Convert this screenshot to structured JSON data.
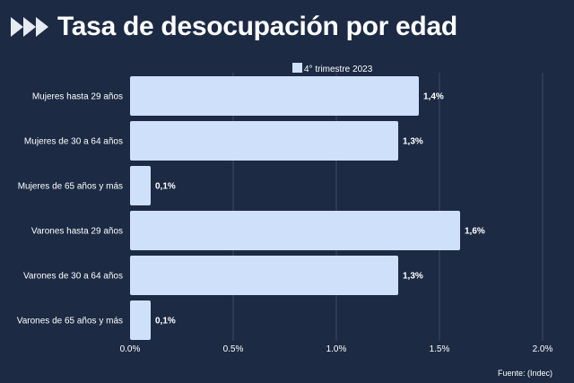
{
  "header": {
    "title": "Tasa de desocupación por edad",
    "logo_icon": "fast-forward-icon"
  },
  "chart_data": {
    "type": "bar",
    "orientation": "horizontal",
    "title": "Tasa de desocupación por edad",
    "categories": [
      "Mujeres hasta 29 años",
      "Mujeres de 30 a 64 años",
      "Mujeres de 65 años y más",
      "Varones hasta 29 años",
      "Varones de 30 a 64 años",
      "Varones de 65 años y más"
    ],
    "series": [
      {
        "name": "4° trimestre 2023",
        "values": [
          1.4,
          1.3,
          0.1,
          1.6,
          1.3,
          0.1
        ],
        "value_labels": [
          "1,4%",
          "1,3%",
          "0,1%",
          "1,6%",
          "1,3%",
          "0,1%"
        ]
      }
    ],
    "xlim": [
      0,
      2.0
    ],
    "xticks": [
      0,
      0.5,
      1.0,
      1.5,
      2.0
    ],
    "xtick_labels": [
      "0.0%",
      "0.5%",
      "1.0%",
      "1.5%",
      "2.0%"
    ],
    "grid": true,
    "legend_position": "top-center"
  },
  "source": "Fuente: (Indec)",
  "colors": {
    "background": "#1c2a44",
    "bar": "#cfe0fb",
    "text": "#ffffff",
    "grid": "#3a4a66",
    "logo": "#e6eaf2"
  }
}
